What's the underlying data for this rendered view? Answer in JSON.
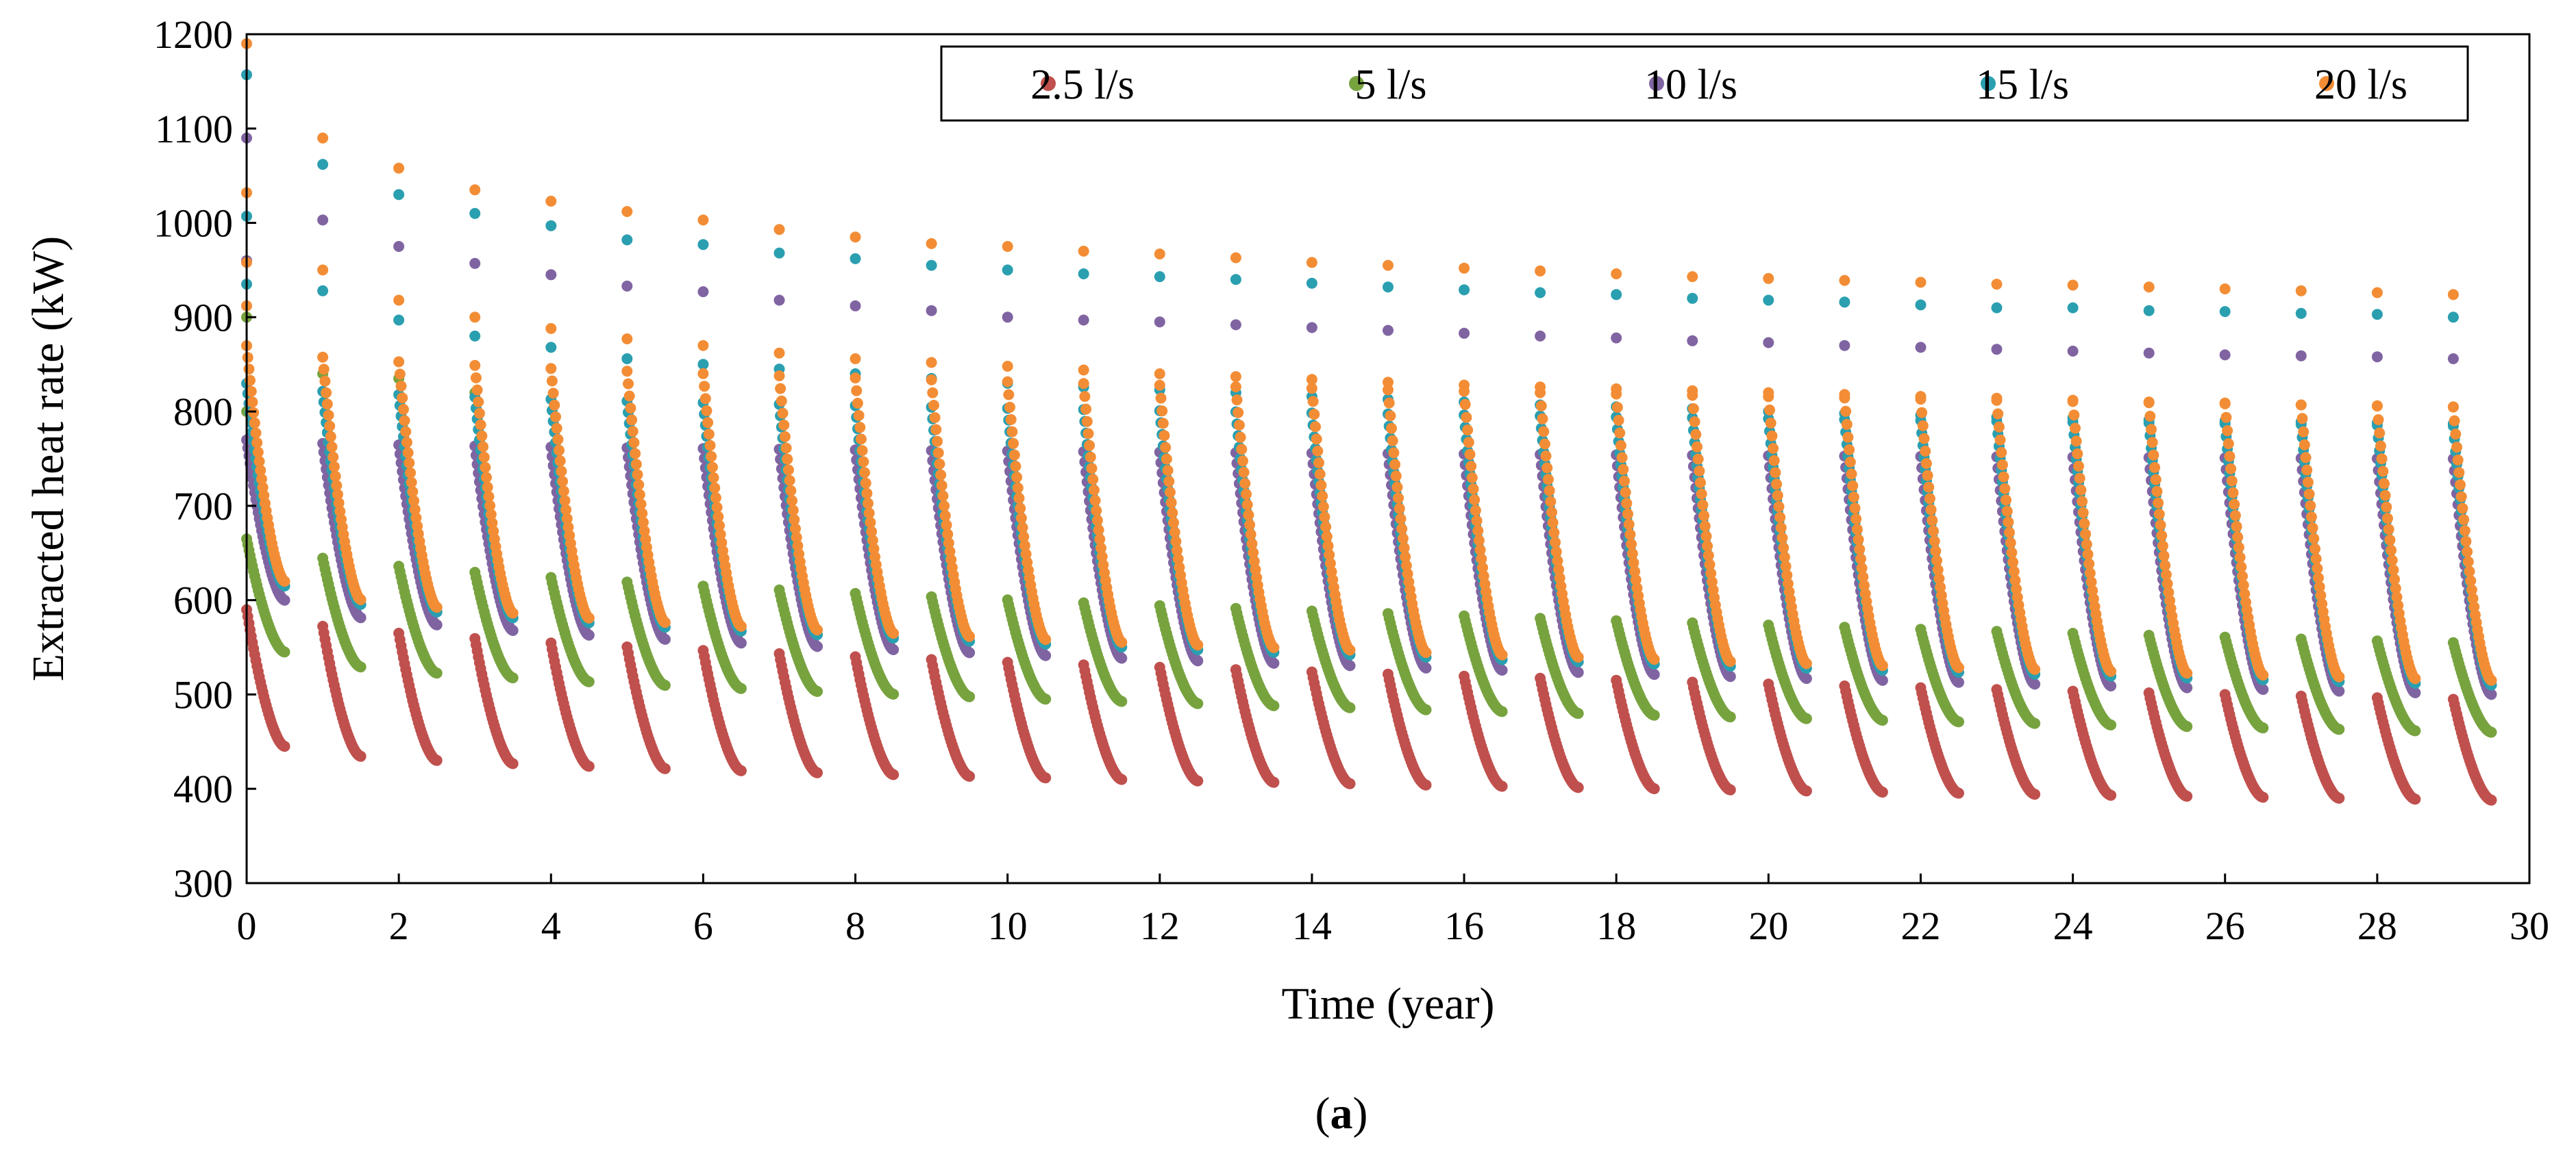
{
  "chart_data": {
    "type": "scatter",
    "title": "",
    "xlabel": "Time (year)",
    "ylabel": "Extracted heat rate (kW)",
    "xlim": [
      0,
      30
    ],
    "ylim": [
      300,
      1200
    ],
    "xticks": [
      "0",
      "2",
      "4",
      "6",
      "8",
      "10",
      "12",
      "14",
      "16",
      "18",
      "20",
      "22",
      "24",
      "26",
      "28",
      "30"
    ],
    "yticks": [
      "300",
      "400",
      "500",
      "600",
      "700",
      "800",
      "900",
      "1000",
      "1100",
      "1200"
    ],
    "grid": false,
    "legend_position": "top-right",
    "caption_open": "(",
    "caption_letter": "a",
    "caption_close": ")",
    "cycle_model": {
      "years": 30,
      "heating_season_fraction_of_year": 0.5,
      "samples_per_season": 34,
      "decay_shape_exponent": 0.6
    },
    "series": [
      {
        "name": "2.5 l/s",
        "color": "#c0504d",
        "season_start_first_year": 590,
        "season_start_last_year": 495,
        "season_end_first_year": 445,
        "season_end_last_year": 388,
        "upper_points": []
      },
      {
        "name": "5 l/s",
        "color": "#77a33f",
        "season_start_first_year": 665,
        "season_start_last_year": 555,
        "season_end_first_year": 545,
        "season_end_last_year": 460,
        "upper_points": [
          [
            0,
            900
          ],
          [
            0,
            800
          ],
          [
            1,
            840
          ],
          [
            2,
            835
          ],
          [
            3,
            820
          ]
        ]
      },
      {
        "name": "10 l/s",
        "color": "#8064a2",
        "season_start_first_year": 770,
        "season_start_last_year": 750,
        "season_end_first_year": 600,
        "season_end_last_year": 500,
        "upper_points": [
          [
            0,
            1090
          ],
          [
            0,
            960
          ],
          [
            1,
            1003
          ],
          [
            2,
            975
          ],
          [
            3,
            957
          ],
          [
            4,
            945
          ],
          [
            5,
            933
          ],
          [
            6,
            927
          ],
          [
            7,
            918
          ],
          [
            8,
            912
          ],
          [
            9,
            907
          ],
          [
            10,
            900
          ],
          [
            11,
            897
          ],
          [
            12,
            895
          ],
          [
            13,
            892
          ],
          [
            14,
            889
          ],
          [
            15,
            886
          ],
          [
            16,
            883
          ],
          [
            17,
            880
          ],
          [
            18,
            878
          ],
          [
            19,
            875
          ],
          [
            20,
            873
          ],
          [
            21,
            870
          ],
          [
            22,
            868
          ],
          [
            23,
            866
          ],
          [
            24,
            864
          ],
          [
            25,
            862
          ],
          [
            26,
            860
          ],
          [
            27,
            859
          ],
          [
            28,
            858
          ],
          [
            29,
            856
          ]
        ]
      },
      {
        "name": "15 l/s",
        "color": "#2a9fb0",
        "season_start_first_year": 830,
        "season_start_last_year": 785,
        "season_end_first_year": 615,
        "season_end_last_year": 510,
        "upper_points": [
          [
            0,
            1157
          ],
          [
            0,
            1007
          ],
          [
            0,
            935
          ],
          [
            1,
            1062
          ],
          [
            1,
            928
          ],
          [
            2,
            1030
          ],
          [
            2,
            897
          ],
          [
            3,
            1010
          ],
          [
            3,
            880
          ],
          [
            4,
            997
          ],
          [
            4,
            868
          ],
          [
            5,
            982
          ],
          [
            5,
            856
          ],
          [
            6,
            977
          ],
          [
            6,
            850
          ],
          [
            7,
            968
          ],
          [
            7,
            845
          ],
          [
            8,
            962
          ],
          [
            8,
            840
          ],
          [
            9,
            955
          ],
          [
            9,
            835
          ],
          [
            10,
            950
          ],
          [
            10,
            830
          ],
          [
            11,
            946
          ],
          [
            11,
            826
          ],
          [
            12,
            943
          ],
          [
            12,
            823
          ],
          [
            13,
            940
          ],
          [
            13,
            820
          ],
          [
            14,
            936
          ],
          [
            14,
            816
          ],
          [
            15,
            932
          ],
          [
            15,
            813
          ],
          [
            16,
            929
          ],
          [
            16,
            810
          ],
          [
            17,
            926
          ],
          [
            17,
            807
          ],
          [
            18,
            924
          ],
          [
            18,
            805
          ],
          [
            19,
            920
          ],
          [
            19,
            803
          ],
          [
            20,
            918
          ],
          [
            20,
            800
          ],
          [
            21,
            916
          ],
          [
            21,
            798
          ],
          [
            22,
            913
          ],
          [
            22,
            796
          ],
          [
            23,
            910
          ],
          [
            23,
            794
          ],
          [
            24,
            910
          ],
          [
            24,
            793
          ],
          [
            25,
            907
          ],
          [
            25,
            791
          ],
          [
            26,
            906
          ],
          [
            26,
            790
          ],
          [
            27,
            904
          ],
          [
            27,
            789
          ],
          [
            28,
            903
          ],
          [
            28,
            788
          ],
          [
            29,
            900
          ],
          [
            29,
            787
          ]
        ]
      },
      {
        "name": "20 l/s",
        "color": "#f38d35",
        "season_start_first_year": 870,
        "season_start_last_year": 805,
        "season_end_first_year": 620,
        "season_end_last_year": 515,
        "upper_points": [
          [
            0,
            1190
          ],
          [
            0,
            1032
          ],
          [
            0,
            958
          ],
          [
            0,
            912
          ],
          [
            1,
            1090
          ],
          [
            1,
            950
          ],
          [
            2,
            1058
          ],
          [
            2,
            918
          ],
          [
            3,
            1035
          ],
          [
            3,
            900
          ],
          [
            4,
            1023
          ],
          [
            4,
            888
          ],
          [
            5,
            1012
          ],
          [
            5,
            877
          ],
          [
            6,
            1003
          ],
          [
            6,
            870
          ],
          [
            7,
            993
          ],
          [
            7,
            862
          ],
          [
            8,
            985
          ],
          [
            8,
            856
          ],
          [
            9,
            978
          ],
          [
            9,
            852
          ],
          [
            10,
            975
          ],
          [
            10,
            848
          ],
          [
            11,
            970
          ],
          [
            11,
            844
          ],
          [
            12,
            967
          ],
          [
            12,
            840
          ],
          [
            13,
            963
          ],
          [
            13,
            837
          ],
          [
            14,
            958
          ],
          [
            14,
            834
          ],
          [
            15,
            955
          ],
          [
            15,
            831
          ],
          [
            16,
            952
          ],
          [
            16,
            828
          ],
          [
            17,
            949
          ],
          [
            17,
            826
          ],
          [
            18,
            946
          ],
          [
            18,
            824
          ],
          [
            19,
            943
          ],
          [
            19,
            822
          ],
          [
            20,
            941
          ],
          [
            20,
            820
          ],
          [
            21,
            939
          ],
          [
            21,
            818
          ],
          [
            22,
            937
          ],
          [
            22,
            816
          ],
          [
            23,
            935
          ],
          [
            23,
            814
          ],
          [
            24,
            934
          ],
          [
            24,
            812
          ],
          [
            25,
            932
          ],
          [
            25,
            810
          ],
          [
            26,
            930
          ],
          [
            26,
            809
          ],
          [
            27,
            928
          ],
          [
            27,
            807
          ],
          [
            28,
            926
          ],
          [
            28,
            806
          ],
          [
            29,
            924
          ],
          [
            29,
            805
          ]
        ]
      }
    ]
  }
}
